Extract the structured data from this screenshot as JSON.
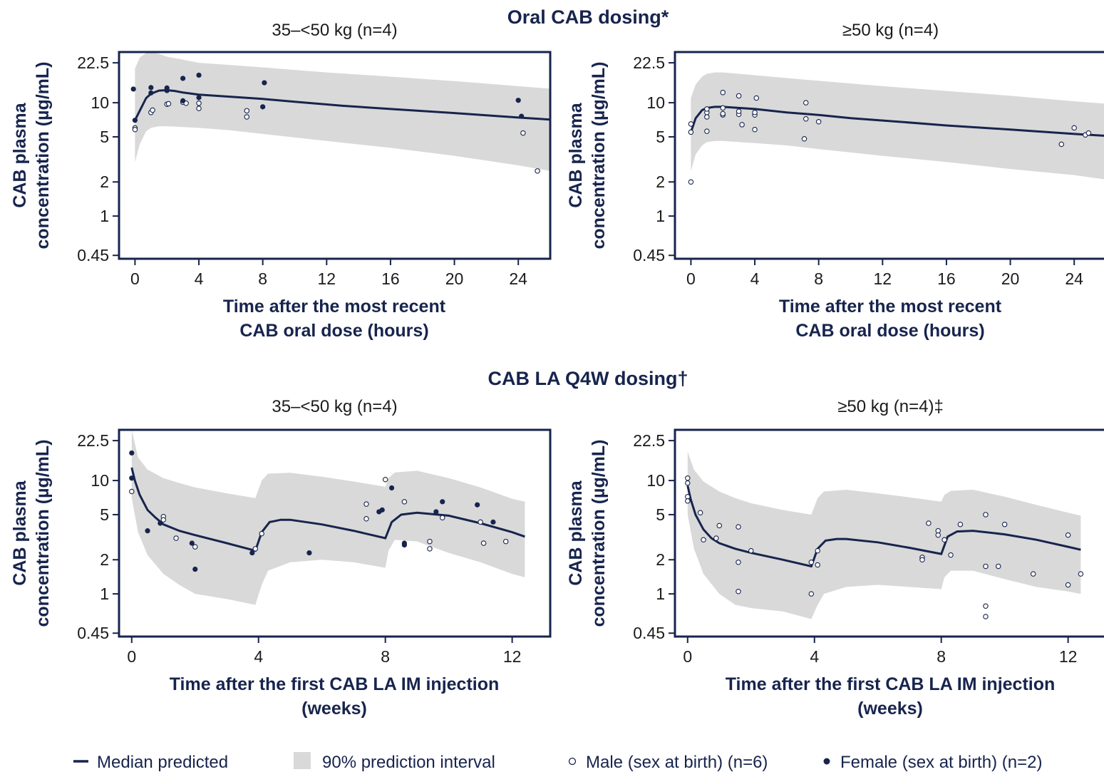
{
  "section_titles": {
    "oral": "Oral CAB dosing*",
    "la": "CAB LA Q4W dosing†"
  },
  "legend": {
    "median": "Median predicted",
    "interval": "90% prediction interval",
    "male": "Male (sex at birth) (n=6)",
    "female": "Female (sex at birth) (n=2)"
  },
  "colors": {
    "navy": "#17244d",
    "band": "#d9d9d9",
    "text": "#1b1b1b"
  },
  "chart_data": [
    {
      "type": "line",
      "title": "35–<50 kg (n=4)",
      "xlabel": [
        "Time after the most recent",
        "CAB oral dose (hours)"
      ],
      "ylabel": [
        "CAB plasma",
        "concentration (µg/mL)"
      ],
      "y_scale": "log",
      "xlim": [
        -1,
        26
      ],
      "ylim": [
        0.42,
        28
      ],
      "xticks": [
        0,
        4,
        8,
        12,
        16,
        20,
        24
      ],
      "yticks": [
        0.45,
        1,
        2,
        5,
        10,
        22.5
      ],
      "median": {
        "x": [
          0,
          0.3,
          0.7,
          1,
          1.5,
          2,
          2.5,
          3,
          4,
          6,
          8,
          10,
          13,
          16,
          20,
          24,
          26
        ],
        "y": [
          7,
          8.5,
          11,
          12,
          12.8,
          12.9,
          12.7,
          12.3,
          11.8,
          11.3,
          10.8,
          10.2,
          9.4,
          8.8,
          8.1,
          7.4,
          7.1
        ]
      },
      "interval": {
        "x": [
          0,
          0.3,
          0.7,
          1,
          1.5,
          2,
          3,
          4,
          6,
          8,
          12,
          16,
          20,
          24,
          26
        ],
        "lower": [
          3,
          4.3,
          5.6,
          6,
          6.2,
          6.2,
          6.1,
          6,
          5.7,
          5.3,
          4.6,
          4,
          3.4,
          2.8,
          2.5
        ],
        "upper": [
          20,
          25,
          27.5,
          28,
          27,
          25.5,
          24,
          22.5,
          21.5,
          20.5,
          18.5,
          17,
          15.5,
          14,
          13.3
        ]
      },
      "male": [
        [
          0,
          6
        ],
        [
          0,
          5.8
        ],
        [
          1,
          8.2
        ],
        [
          1.1,
          8.6
        ],
        [
          2,
          9.7
        ],
        [
          2.1,
          9.8
        ],
        [
          3,
          10.1
        ],
        [
          3.2,
          9.9
        ],
        [
          4,
          9.9
        ],
        [
          4,
          8.9
        ],
        [
          7,
          8.5
        ],
        [
          7,
          7.5
        ],
        [
          24.3,
          5.4
        ],
        [
          25.2,
          2.5
        ]
      ],
      "female": [
        [
          -0.1,
          13.2
        ],
        [
          0,
          7
        ],
        [
          1,
          12.2
        ],
        [
          1,
          13.6
        ],
        [
          2,
          13.5
        ],
        [
          2,
          12.8
        ],
        [
          3,
          10.4
        ],
        [
          3,
          16.4
        ],
        [
          4,
          11.1
        ],
        [
          4,
          17.5
        ],
        [
          8,
          9.2
        ],
        [
          8.1,
          15
        ],
        [
          24,
          10.5
        ],
        [
          24.2,
          7.6
        ]
      ]
    },
    {
      "type": "line",
      "title": "≥50 kg (n=4)",
      "xlabel": [
        "Time after the most recent",
        "CAB oral dose (hours)"
      ],
      "ylabel": [
        "CAB plasma",
        "concentration (µg/mL)"
      ],
      "y_scale": "log",
      "xlim": [
        -1,
        26
      ],
      "ylim": [
        0.42,
        28
      ],
      "xticks": [
        0,
        4,
        8,
        12,
        16,
        20,
        24
      ],
      "yticks": [
        0.45,
        1,
        2,
        5,
        10,
        22.5
      ],
      "median": {
        "x": [
          0,
          0.3,
          0.7,
          1,
          1.5,
          2,
          3,
          4,
          6,
          8,
          10,
          13,
          16,
          20,
          24,
          26
        ],
        "y": [
          5.5,
          7.3,
          8.6,
          9,
          9.2,
          9.2,
          9,
          8.8,
          8.2,
          7.8,
          7.3,
          6.8,
          6.3,
          5.8,
          5.3,
          5.1
        ]
      },
      "interval": {
        "x": [
          0,
          0.3,
          0.7,
          1,
          1.5,
          2,
          3,
          4,
          6,
          8,
          12,
          16,
          20,
          24,
          26
        ],
        "lower": [
          2.5,
          3.5,
          4.2,
          4.5,
          4.6,
          4.6,
          4.5,
          4.4,
          4.2,
          3.9,
          3.4,
          3,
          2.6,
          2.3,
          2.1
        ],
        "upper": [
          11,
          14.5,
          17,
          18,
          18.5,
          18.5,
          18,
          17.5,
          16.5,
          15.6,
          14,
          12.7,
          11.5,
          10.3,
          9.8
        ]
      },
      "male": [
        [
          0,
          2
        ],
        [
          0,
          5.5
        ],
        [
          0,
          6.5
        ],
        [
          1,
          5.6
        ],
        [
          1,
          7.5
        ],
        [
          1,
          8.2
        ],
        [
          1,
          8.8
        ],
        [
          2,
          7.8
        ],
        [
          2,
          8
        ],
        [
          2,
          9
        ],
        [
          2,
          12.3
        ],
        [
          3,
          7.9
        ],
        [
          3,
          8.4
        ],
        [
          3,
          11.5
        ],
        [
          3.2,
          6.4
        ],
        [
          4,
          5.8
        ],
        [
          4,
          7.8
        ],
        [
          4,
          8.2
        ],
        [
          4.1,
          11
        ],
        [
          7.1,
          4.8
        ],
        [
          7.2,
          7.2
        ],
        [
          7.2,
          10
        ],
        [
          8,
          6.8
        ],
        [
          23.2,
          4.3
        ],
        [
          24,
          6
        ],
        [
          24.7,
          5.2
        ],
        [
          24.9,
          5.4
        ]
      ],
      "female": []
    },
    {
      "type": "line",
      "title": "35–<50 kg (n=4)",
      "xlabel": [
        "Time after the first CAB LA IM injection",
        "(weeks)"
      ],
      "ylabel": [
        "CAB plasma",
        "concentration (µg/mL)"
      ],
      "y_scale": "log",
      "xlim": [
        -0.4,
        13.2
      ],
      "ylim": [
        0.42,
        28
      ],
      "xticks": [
        0,
        4,
        8,
        12
      ],
      "yticks": [
        0.45,
        1,
        2,
        5,
        10,
        22.5
      ],
      "median": {
        "x": [
          0,
          0.1,
          0.25,
          0.5,
          0.75,
          1,
          1.5,
          2,
          3,
          3.9,
          4.1,
          4.35,
          4.7,
          5,
          6,
          7,
          8,
          8.2,
          8.5,
          9,
          10,
          11,
          12,
          12.4
        ],
        "y": [
          13,
          10,
          7.5,
          5.5,
          4.7,
          4.1,
          3.6,
          3.3,
          2.8,
          2.4,
          3.5,
          4.3,
          4.5,
          4.5,
          4.1,
          3.6,
          3.1,
          4.3,
          5,
          5.2,
          4.9,
          4.2,
          3.5,
          3.2
        ]
      },
      "interval": {
        "x": [
          0,
          0.2,
          0.5,
          1,
          1.5,
          2,
          3,
          3.9,
          4.1,
          4.3,
          5,
          6,
          7,
          8,
          8.1,
          8.3,
          9,
          10,
          11,
          12,
          12.4
        ],
        "lower": [
          7,
          3.5,
          2.2,
          1.5,
          1.2,
          1,
          0.9,
          0.8,
          1.2,
          1.6,
          1.9,
          2,
          1.9,
          1.7,
          2.4,
          3,
          2.9,
          2.3,
          1.9,
          1.5,
          1.4
        ],
        "upper": [
          28,
          16,
          12.5,
          10.5,
          9.5,
          8.7,
          7.7,
          7,
          10,
          11.5,
          11.7,
          10.8,
          9.8,
          8.8,
          10.5,
          11.8,
          12.2,
          10.5,
          8.7,
          6.9,
          6.5
        ]
      },
      "male": [
        [
          0,
          8
        ],
        [
          1,
          4.8
        ],
        [
          1,
          4.5
        ],
        [
          1.4,
          3.1
        ],
        [
          2,
          2.6
        ],
        [
          3.9,
          2.5
        ],
        [
          4.1,
          3.4
        ],
        [
          7.4,
          6.2
        ],
        [
          7.4,
          4.6
        ],
        [
          8,
          10.2
        ],
        [
          8.6,
          6.5
        ],
        [
          9.4,
          2.9
        ],
        [
          9.4,
          2.5
        ],
        [
          9.8,
          4.7
        ],
        [
          11,
          4.3
        ],
        [
          11.1,
          2.8
        ],
        [
          11.8,
          2.9
        ]
      ],
      "female": [
        [
          0,
          17.5
        ],
        [
          0,
          10.5
        ],
        [
          0.5,
          3.6
        ],
        [
          0.9,
          4.2
        ],
        [
          1.9,
          2.8
        ],
        [
          2,
          1.65
        ],
        [
          3.8,
          2.3
        ],
        [
          5.6,
          2.3
        ],
        [
          7.8,
          5.3
        ],
        [
          7.9,
          5.5
        ],
        [
          8.2,
          8.6
        ],
        [
          8.6,
          2.8
        ],
        [
          8.6,
          2.7
        ],
        [
          9.6,
          5.3
        ],
        [
          9.8,
          6.5
        ],
        [
          10.9,
          6.1
        ],
        [
          11.4,
          4.3
        ]
      ]
    },
    {
      "type": "line",
      "title": "≥50 kg (n=4)‡",
      "xlabel": [
        "Time after the first CAB LA IM injection",
        "(weeks)"
      ],
      "ylabel": [
        "CAB plasma",
        "concentration (µg/mL)"
      ],
      "y_scale": "log",
      "xlim": [
        -0.4,
        13.2
      ],
      "ylim": [
        0.42,
        28
      ],
      "xticks": [
        0,
        4,
        8,
        12
      ],
      "yticks": [
        0.45,
        1,
        2,
        5,
        10,
        22.5
      ],
      "median": {
        "x": [
          0,
          0.1,
          0.25,
          0.5,
          0.75,
          1,
          1.5,
          2,
          3,
          3.9,
          4.1,
          4.35,
          4.7,
          5,
          6,
          7,
          8,
          8.2,
          8.5,
          9,
          10,
          11,
          12,
          12.4
        ],
        "y": [
          9,
          6.8,
          5,
          3.7,
          3.1,
          2.8,
          2.5,
          2.3,
          2,
          1.75,
          2.5,
          2.95,
          3.05,
          3.05,
          2.85,
          2.55,
          2.25,
          3.2,
          3.55,
          3.6,
          3.35,
          3,
          2.6,
          2.45
        ]
      },
      "interval": {
        "x": [
          0,
          0.2,
          0.5,
          1,
          1.5,
          2,
          3,
          3.9,
          4.1,
          4.3,
          5,
          6,
          7,
          8,
          8.1,
          8.3,
          9,
          10,
          11,
          12,
          12.4
        ],
        "lower": [
          5,
          2.5,
          1.5,
          1,
          0.8,
          0.75,
          0.7,
          0.6,
          0.8,
          1,
          1.15,
          1.2,
          1.15,
          1.1,
          1.4,
          1.6,
          1.6,
          1.35,
          1.15,
          1.05,
          1
        ],
        "upper": [
          18,
          12.5,
          9.8,
          8,
          7,
          6.3,
          5.5,
          5,
          7,
          8,
          8.3,
          7.7,
          7.1,
          6.5,
          7.5,
          8.1,
          8.3,
          7.2,
          6.1,
          5.2,
          4.9
        ]
      },
      "male": [
        [
          0,
          10.5
        ],
        [
          0,
          9.5
        ],
        [
          0,
          7.2
        ],
        [
          0,
          6.6
        ],
        [
          0.4,
          5.2
        ],
        [
          0.5,
          3
        ],
        [
          0.9,
          3.1
        ],
        [
          1,
          4
        ],
        [
          1.6,
          3.9
        ],
        [
          1.6,
          1.9
        ],
        [
          1.6,
          1.05
        ],
        [
          2,
          2.4
        ],
        [
          3.9,
          1.9
        ],
        [
          3.9,
          1
        ],
        [
          4.1,
          1.8
        ],
        [
          4.1,
          2.4
        ],
        [
          7.4,
          2.1
        ],
        [
          7.4,
          2
        ],
        [
          7.6,
          4.2
        ],
        [
          7.9,
          3.6
        ],
        [
          7.9,
          3.3
        ],
        [
          8.1,
          3
        ],
        [
          8.3,
          2.2
        ],
        [
          8.6,
          4.1
        ],
        [
          9.4,
          5
        ],
        [
          9.4,
          1.75
        ],
        [
          9.4,
          0.78
        ],
        [
          9.4,
          0.63
        ],
        [
          9.8,
          1.75
        ],
        [
          10,
          4.1
        ],
        [
          10.9,
          1.5
        ],
        [
          12,
          1.2
        ],
        [
          12,
          3.3
        ],
        [
          12.4,
          1.5
        ]
      ],
      "female": []
    }
  ]
}
